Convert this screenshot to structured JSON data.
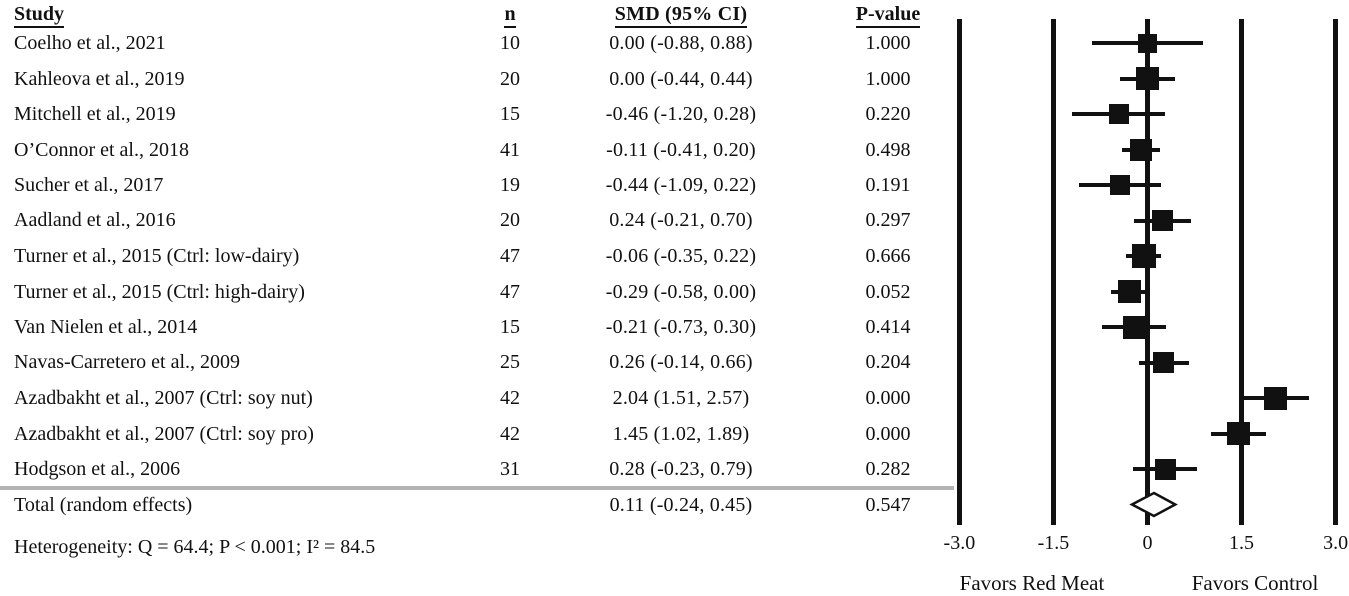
{
  "header": {
    "study": "Study",
    "n": "n",
    "smd": "SMD (95% CI)",
    "p": "P-value"
  },
  "rows": [
    {
      "study": "Coelho et al., 2021",
      "n": "10",
      "smd_ci": "0.00 (-0.88, 0.88)",
      "p": "1.000"
    },
    {
      "study": "Kahleova et al., 2019",
      "n": "20",
      "smd_ci": "0.00 (-0.44, 0.44)",
      "p": "1.000"
    },
    {
      "study": "Mitchell et al., 2019",
      "n": "15",
      "smd_ci": "-0.46 (-1.20, 0.28)",
      "p": "0.220"
    },
    {
      "study": "O’Connor et al., 2018",
      "n": "41",
      "smd_ci": "-0.11 (-0.41, 0.20)",
      "p": "0.498"
    },
    {
      "study": "Sucher et al., 2017",
      "n": "19",
      "smd_ci": "-0.44 (-1.09, 0.22)",
      "p": "0.191"
    },
    {
      "study": "Aadland et al., 2016",
      "n": "20",
      "smd_ci": "0.24 (-0.21, 0.70)",
      "p": "0.297"
    },
    {
      "study": "Turner et al., 2015 (Ctrl: low-dairy)",
      "n": "47",
      "smd_ci": "-0.06 (-0.35, 0.22)",
      "p": "0.666"
    },
    {
      "study": "Turner et al., 2015 (Ctrl: high-dairy)",
      "n": "47",
      "smd_ci": "-0.29 (-0.58, 0.00)",
      "p": "0.052"
    },
    {
      "study": "Van Nielen et al., 2014",
      "n": "15",
      "smd_ci": "-0.21 (-0.73, 0.30)",
      "p": "0.414"
    },
    {
      "study": "Navas-Carretero et al., 2009",
      "n": "25",
      "smd_ci": "0.26 (-0.14, 0.66)",
      "p": "0.204"
    },
    {
      "study": "Azadbakht et al., 2007 (Ctrl: soy nut)",
      "n": "42",
      "smd_ci": "2.04 (1.51, 2.57)",
      "p": "0.000"
    },
    {
      "study": "Azadbakht et al., 2007 (Ctrl: soy pro)",
      "n": "42",
      "smd_ci": "1.45 (1.02, 1.89)",
      "p": "0.000"
    },
    {
      "study": "Hodgson et al., 2006",
      "n": "31",
      "smd_ci": "0.28 (-0.23, 0.79)",
      "p": "0.282"
    }
  ],
  "total_row": {
    "study": "Total (random effects)",
    "smd_ci": "0.11 (-0.24, 0.45)",
    "p": "0.547"
  },
  "heterogeneity": "Heterogeneity: Q = 64.4; P < 0.001; I² = 84.5",
  "axis": {
    "favors_left": "Favors Red Meat",
    "favors_right": "Favors Control"
  },
  "colors": {
    "marker": "#111111",
    "separator": "#b3b3b3",
    "diamond_fill": "#ffffff"
  },
  "chart_data": {
    "type": "forest",
    "xlim": [
      -3.0,
      3.0
    ],
    "x_ticks": [
      -3.0,
      -1.5,
      0,
      1.5,
      3.0
    ],
    "x_tick_labels": [
      "-3.0",
      "-1.5",
      "0",
      "1.5",
      "3.0"
    ],
    "footer_left": "Favors Red Meat",
    "footer_right": "Favors Control",
    "points": [
      {
        "label": "Coelho et al., 2021",
        "n": 10,
        "smd": 0.0,
        "lo": -0.88,
        "hi": 0.88,
        "p": 1.0,
        "size": 19
      },
      {
        "label": "Kahleova et al., 2019",
        "n": 20,
        "smd": 0.0,
        "lo": -0.44,
        "hi": 0.44,
        "p": 1.0,
        "size": 23
      },
      {
        "label": "Mitchell et al., 2019",
        "n": 15,
        "smd": -0.46,
        "lo": -1.2,
        "hi": 0.28,
        "p": 0.22,
        "size": 20
      },
      {
        "label": "O’Connor et al., 2018",
        "n": 41,
        "smd": -0.11,
        "lo": -0.41,
        "hi": 0.2,
        "p": 0.498,
        "size": 22
      },
      {
        "label": "Sucher et al., 2017",
        "n": 19,
        "smd": -0.44,
        "lo": -1.09,
        "hi": 0.22,
        "p": 0.191,
        "size": 20
      },
      {
        "label": "Aadland et al., 2016",
        "n": 20,
        "smd": 0.24,
        "lo": -0.21,
        "hi": 0.7,
        "p": 0.297,
        "size": 21
      },
      {
        "label": "Turner et al., 2015 (Ctrl: low-dairy)",
        "n": 47,
        "smd": -0.06,
        "lo": -0.35,
        "hi": 0.22,
        "p": 0.666,
        "size": 24
      },
      {
        "label": "Turner et al., 2015 (Ctrl: high-dairy)",
        "n": 47,
        "smd": -0.29,
        "lo": -0.58,
        "hi": 0.0,
        "p": 0.052,
        "size": 23
      },
      {
        "label": "Van Nielen et al., 2014",
        "n": 15,
        "smd": -0.21,
        "lo": -0.73,
        "hi": 0.3,
        "p": 0.414,
        "size": 23
      },
      {
        "label": "Navas-Carretero et al., 2009",
        "n": 25,
        "smd": 0.26,
        "lo": -0.14,
        "hi": 0.66,
        "p": 0.204,
        "size": 21
      },
      {
        "label": "Azadbakht et al., 2007 (Ctrl: soy nut)",
        "n": 42,
        "smd": 2.04,
        "lo": 1.51,
        "hi": 2.57,
        "p": 0.0,
        "size": 23
      },
      {
        "label": "Azadbakht et al., 2007 (Ctrl: soy pro)",
        "n": 42,
        "smd": 1.45,
        "lo": 1.02,
        "hi": 1.89,
        "p": 0.0,
        "size": 23
      },
      {
        "label": "Hodgson et al., 2006",
        "n": 31,
        "smd": 0.28,
        "lo": -0.23,
        "hi": 0.79,
        "p": 0.282,
        "size": 21
      }
    ],
    "total": {
      "label": "Total (random effects)",
      "smd": 0.11,
      "lo": -0.24,
      "hi": 0.45,
      "p": 0.547
    }
  }
}
